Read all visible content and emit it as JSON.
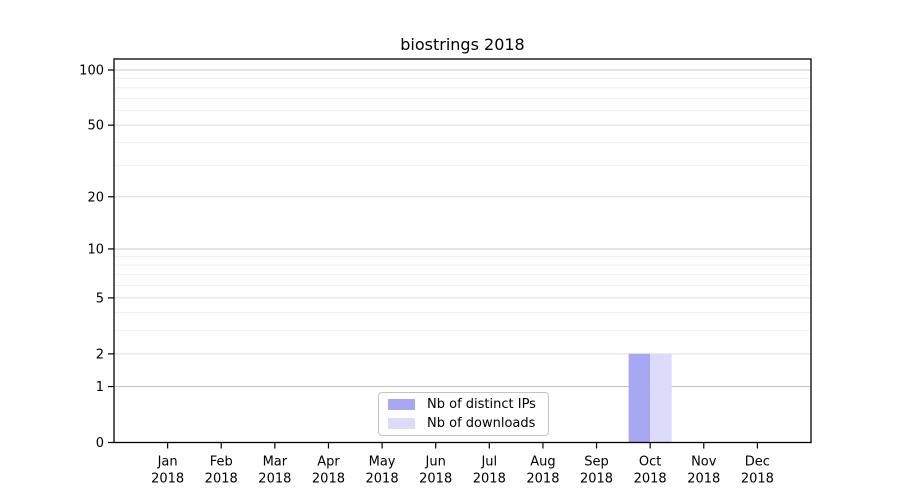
{
  "chart_data": {
    "type": "bar",
    "title": "biostrings 2018",
    "x_categories": [
      {
        "label": "Jan",
        "sublabel": "2018"
      },
      {
        "label": "Feb",
        "sublabel": "2018"
      },
      {
        "label": "Mar",
        "sublabel": "2018"
      },
      {
        "label": "Apr",
        "sublabel": "2018"
      },
      {
        "label": "May",
        "sublabel": "2018"
      },
      {
        "label": "Jun",
        "sublabel": "2018"
      },
      {
        "label": "Jul",
        "sublabel": "2018"
      },
      {
        "label": "Aug",
        "sublabel": "2018"
      },
      {
        "label": "Sep",
        "sublabel": "2018"
      },
      {
        "label": "Oct",
        "sublabel": "2018"
      },
      {
        "label": "Nov",
        "sublabel": "2018"
      },
      {
        "label": "Dec",
        "sublabel": "2018"
      }
    ],
    "y_axis": {
      "scale": "log1p",
      "tick_values": [
        0,
        1,
        2,
        5,
        10,
        20,
        50,
        100
      ],
      "decade_gridline_values": [
        1,
        10,
        100
      ],
      "labeled_gridline_values": [
        2,
        5,
        20,
        50
      ],
      "minor_gridline_values": [
        3,
        4,
        6,
        7,
        8,
        9,
        30,
        40,
        60,
        70,
        80,
        90
      ],
      "ylim": [
        0,
        115
      ]
    },
    "series": [
      {
        "name": "Nb of distinct IPs",
        "color": "#a8a8f2",
        "values": [
          0,
          0,
          0,
          0,
          0,
          0,
          0,
          0,
          0,
          2,
          0,
          0
        ]
      },
      {
        "name": "Nb of downloads",
        "color": "#dcdcfa",
        "values": [
          0,
          0,
          0,
          0,
          0,
          0,
          0,
          0,
          0,
          2,
          0,
          0
        ]
      }
    ],
    "legend": {
      "items": [
        {
          "label": "Nb of distinct IPs",
          "color": "#a8a8f2"
        },
        {
          "label": "Nb of downloads",
          "color": "#dcdcfa"
        }
      ],
      "position": "bottom-center-inside"
    },
    "colors": {
      "axis": "#000000",
      "decade_gridline": "#c8c8c8",
      "labeled_gridline": "#dedede",
      "minor_gridline": "#efefef",
      "legend_border": "#c4c4c4",
      "text": "#000000"
    },
    "grid": "on"
  }
}
